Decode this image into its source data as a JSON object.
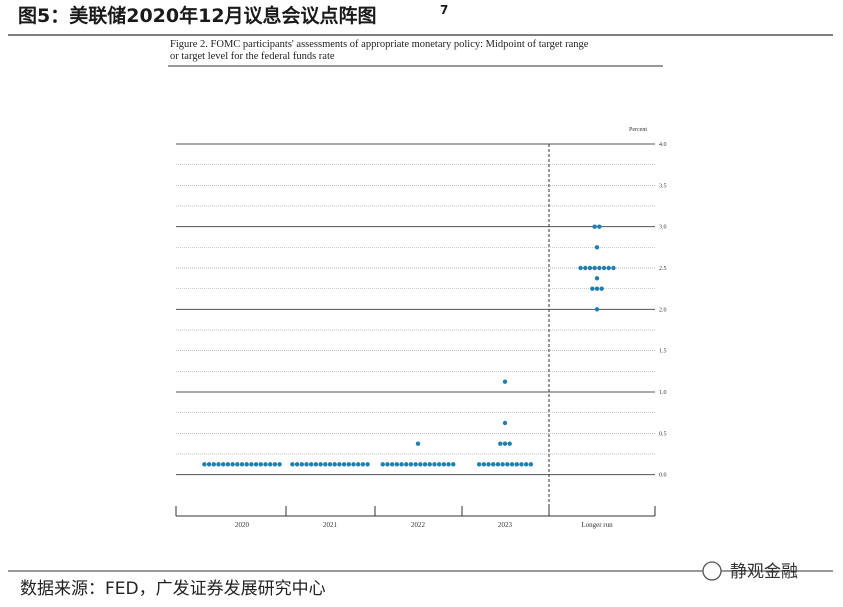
{
  "header": {
    "title": "图5：美联储2020年12月议息会议点阵图",
    "note": "7"
  },
  "chart_data": {
    "type": "dot",
    "caption": "Figure 2. FOMC participants' assessments of appropriate monetary policy: Midpoint of target range",
    "caption_line2": "or target level for the federal funds rate",
    "y_label": "Percent",
    "categories": [
      "2020",
      "2021",
      "2022",
      "2023",
      "Longer run"
    ],
    "dots": [
      [
        {
          "value": 0.125,
          "count": 17
        }
      ],
      [
        {
          "value": 0.125,
          "count": 17
        }
      ],
      [
        {
          "value": 0.125,
          "count": 16
        },
        {
          "value": 0.375,
          "count": 1
        }
      ],
      [
        {
          "value": 0.125,
          "count": 12
        },
        {
          "value": 0.375,
          "count": 3
        },
        {
          "value": 0.625,
          "count": 1
        },
        {
          "value": 1.125,
          "count": 1
        }
      ],
      [
        {
          "value": 2.0,
          "count": 1
        },
        {
          "value": 2.25,
          "count": 3
        },
        {
          "value": 2.375,
          "count": 1
        },
        {
          "value": 2.5,
          "count": 8
        },
        {
          "value": 2.75,
          "count": 1
        },
        {
          "value": 3.0,
          "count": 2
        }
      ]
    ],
    "color": "#1f7fae",
    "ylim": [
      -0.5,
      4.0
    ],
    "yticks": [
      {
        "value": 0,
        "label": "0.0"
      },
      0.5,
      {
        "value": 1,
        "label": "1.0"
      },
      1.5,
      {
        "value": 2,
        "label": "2.0"
      },
      2.5,
      {
        "value": 3,
        "label": "3.0"
      },
      3.5,
      {
        "value": 4,
        "label": "4.0"
      }
    ],
    "minor_yticks": [
      0.25,
      0.75,
      1.25,
      1.75,
      2.25,
      2.75,
      3.25,
      3.75
    ],
    "grid": true
  },
  "footer": {
    "source": "数据来源：FED，广发证券发展研究中心",
    "watermark": "静观金融"
  }
}
